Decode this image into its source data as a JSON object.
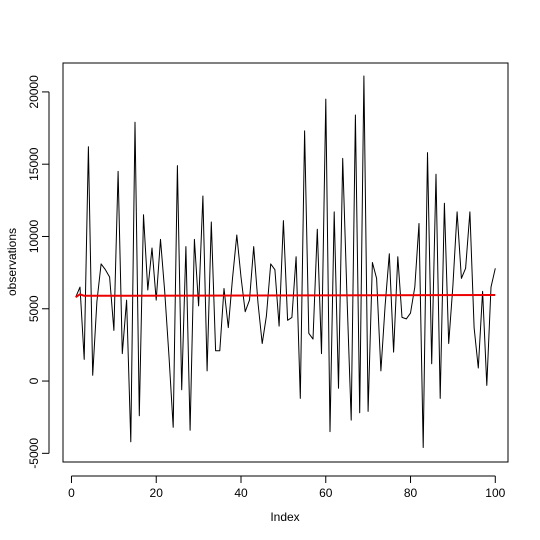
{
  "chart_data": {
    "type": "line",
    "title": "",
    "xlabel": "Index",
    "ylabel": "observations",
    "xlim": [
      -2,
      103
    ],
    "ylim": [
      -5600,
      22000
    ],
    "xticks": [
      0,
      20,
      40,
      60,
      80,
      100
    ],
    "yticks": [
      -5000,
      0,
      5000,
      10000,
      15000,
      20000
    ],
    "xtick_labels": [
      "0",
      "20",
      "40",
      "60",
      "80",
      "100"
    ],
    "ytick_labels": [
      "-5000",
      "0",
      "5000",
      "10000",
      "15000",
      "20000"
    ],
    "grid": false,
    "legend": "none",
    "series": [
      {
        "color": "#000000",
        "x": [
          1,
          2,
          3,
          4,
          5,
          6,
          7,
          8,
          9,
          10,
          11,
          12,
          13,
          14,
          15,
          16,
          17,
          18,
          19,
          20,
          21,
          22,
          23,
          24,
          25,
          26,
          27,
          28,
          29,
          30,
          31,
          32,
          33,
          34,
          35,
          36,
          37,
          38,
          39,
          40,
          41,
          42,
          43,
          44,
          45,
          46,
          47,
          48,
          49,
          50,
          51,
          52,
          53,
          54,
          55,
          56,
          57,
          58,
          59,
          60,
          61,
          62,
          63,
          64,
          65,
          66,
          67,
          68,
          69,
          70,
          71,
          72,
          73,
          74,
          75,
          76,
          77,
          78,
          79,
          80,
          81,
          82,
          83,
          84,
          85,
          86,
          87,
          88,
          89,
          90,
          91,
          92,
          93,
          94,
          95,
          96,
          97,
          98,
          99,
          100
        ],
        "values": [
          5800,
          6500,
          1500,
          16200,
          400,
          5500,
          8100,
          7700,
          7200,
          3500,
          14500,
          1900,
          5600,
          -4200,
          17900,
          -2400,
          11500,
          6300,
          9200,
          5600,
          9800,
          6200,
          1700,
          -3200,
          14900,
          -600,
          9300,
          -3400,
          9800,
          5200,
          12800,
          700,
          11000,
          2100,
          2100,
          6400,
          3700,
          7100,
          10100,
          7200,
          4800,
          5600,
          9300,
          5400,
          2600,
          4500,
          8100,
          7700,
          3800,
          11100,
          4200,
          4400,
          8600,
          -1200,
          17300,
          3300,
          2900,
          10500,
          1900,
          19500,
          -3500,
          11700,
          -500,
          15400,
          5800,
          -2700,
          18400,
          -2200,
          21100,
          -2100,
          8200,
          7100,
          700,
          5200,
          8800,
          2000,
          8600,
          4400,
          4300,
          4700,
          6500,
          10900,
          -4600,
          15800,
          1200,
          14300,
          -1200,
          12300,
          2600,
          6600,
          11700,
          7100,
          7800,
          11700,
          3700,
          900,
          6200,
          -300,
          6500,
          7800
        ]
      },
      {
        "color": "#ee0000",
        "x": [
          1,
          2,
          3,
          100
        ],
        "values": [
          5800,
          6000,
          5900,
          5950
        ]
      }
    ]
  }
}
